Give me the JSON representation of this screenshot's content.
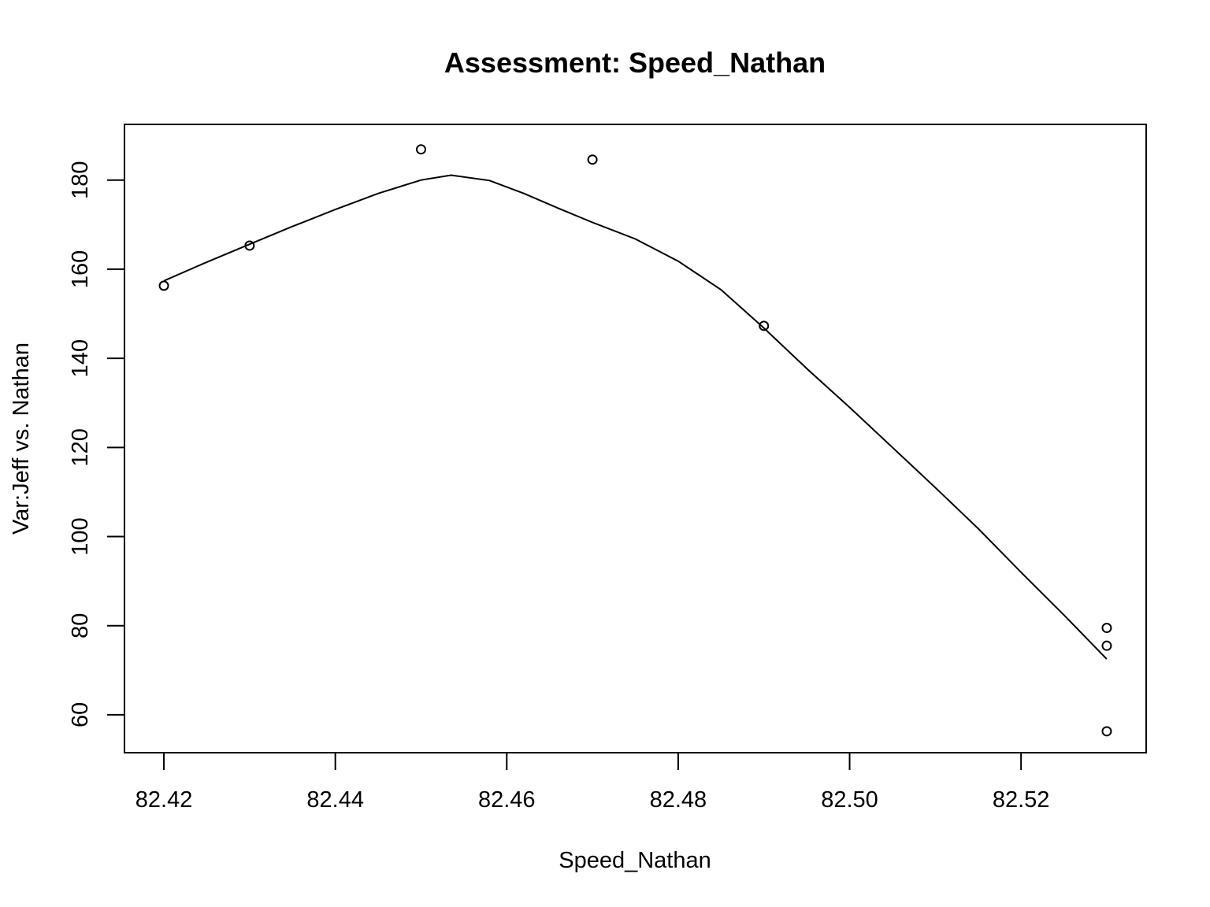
{
  "chart_data": {
    "type": "scatter",
    "title": "Assessment: Speed_Nathan",
    "xlabel": "Speed_Nathan",
    "ylabel": "Var:Jeff vs. Nathan",
    "xlim": [
      82.4154,
      82.5346
    ],
    "ylim": [
      51.5,
      192.5
    ],
    "x_ticks": [
      "82.42",
      "82.44",
      "82.46",
      "82.48",
      "82.50",
      "82.52"
    ],
    "x_tick_values": [
      82.42,
      82.44,
      82.46,
      82.48,
      82.5,
      82.52
    ],
    "y_ticks": [
      "60",
      "80",
      "100",
      "120",
      "140",
      "160",
      "180"
    ],
    "y_tick_values": [
      60,
      80,
      100,
      120,
      140,
      160,
      180
    ],
    "grid": false,
    "points": [
      {
        "x": 82.42,
        "y": 156.3
      },
      {
        "x": 82.43,
        "y": 165.3
      },
      {
        "x": 82.45,
        "y": 186.9
      },
      {
        "x": 82.47,
        "y": 184.6
      },
      {
        "x": 82.49,
        "y": 147.3
      },
      {
        "x": 82.53,
        "y": 79.5
      },
      {
        "x": 82.53,
        "y": 75.5
      },
      {
        "x": 82.53,
        "y": 56.3
      }
    ],
    "smooth_line": [
      {
        "x": 82.42,
        "y": 157.4
      },
      {
        "x": 82.425,
        "y": 161.6
      },
      {
        "x": 82.43,
        "y": 165.6
      },
      {
        "x": 82.435,
        "y": 169.6
      },
      {
        "x": 82.44,
        "y": 173.4
      },
      {
        "x": 82.445,
        "y": 177.0
      },
      {
        "x": 82.45,
        "y": 180.0
      },
      {
        "x": 82.4535,
        "y": 181.1
      },
      {
        "x": 82.458,
        "y": 179.9
      },
      {
        "x": 82.462,
        "y": 177.0
      },
      {
        "x": 82.466,
        "y": 173.7
      },
      {
        "x": 82.47,
        "y": 170.5
      },
      {
        "x": 82.475,
        "y": 166.8
      },
      {
        "x": 82.48,
        "y": 161.8
      },
      {
        "x": 82.485,
        "y": 155.4
      },
      {
        "x": 82.49,
        "y": 146.8
      },
      {
        "x": 82.495,
        "y": 137.7
      },
      {
        "x": 82.5,
        "y": 129.0
      },
      {
        "x": 82.505,
        "y": 120.0
      },
      {
        "x": 82.51,
        "y": 111.0
      },
      {
        "x": 82.515,
        "y": 101.8
      },
      {
        "x": 82.52,
        "y": 92.0
      },
      {
        "x": 82.525,
        "y": 82.4
      },
      {
        "x": 82.53,
        "y": 72.5
      }
    ]
  }
}
